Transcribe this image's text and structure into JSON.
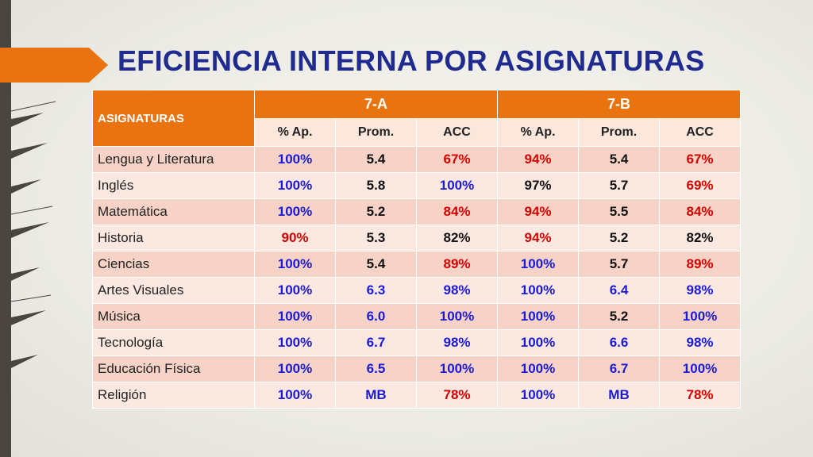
{
  "slide": {
    "title": "EFICIENCIA INTERNA POR ASIGNATURAS",
    "accent_color": "#e8730f",
    "title_color": "#1f2b8f"
  },
  "table": {
    "subject_header": "ASIGNATURAS",
    "groups": [
      "7-A",
      "7-B"
    ],
    "subheaders": [
      "% Ap.",
      "Prom.",
      "ACC",
      "% Ap.",
      "Prom.",
      "ACC"
    ],
    "rows": [
      {
        "subject": "Lengua y Literatura",
        "cells": [
          {
            "v": "100%",
            "c": "blue"
          },
          {
            "v": "5.4",
            "c": "black"
          },
          {
            "v": "67%",
            "c": "red"
          },
          {
            "v": "94%",
            "c": "red"
          },
          {
            "v": "5.4",
            "c": "black"
          },
          {
            "v": "67%",
            "c": "red"
          }
        ]
      },
      {
        "subject": "Inglés",
        "cells": [
          {
            "v": "100%",
            "c": "blue"
          },
          {
            "v": "5.8",
            "c": "black"
          },
          {
            "v": "100%",
            "c": "blue"
          },
          {
            "v": "97%",
            "c": "black"
          },
          {
            "v": "5.7",
            "c": "black"
          },
          {
            "v": "69%",
            "c": "red"
          }
        ]
      },
      {
        "subject": "Matemática",
        "cells": [
          {
            "v": "100%",
            "c": "blue"
          },
          {
            "v": "5.2",
            "c": "black"
          },
          {
            "v": "84%",
            "c": "red"
          },
          {
            "v": "94%",
            "c": "red"
          },
          {
            "v": "5.5",
            "c": "black"
          },
          {
            "v": "84%",
            "c": "red"
          }
        ]
      },
      {
        "subject": "Historia",
        "cells": [
          {
            "v": "90%",
            "c": "red"
          },
          {
            "v": "5.3",
            "c": "black"
          },
          {
            "v": "82%",
            "c": "black"
          },
          {
            "v": "94%",
            "c": "red"
          },
          {
            "v": "5.2",
            "c": "black"
          },
          {
            "v": "82%",
            "c": "black"
          }
        ]
      },
      {
        "subject": "Ciencias",
        "cells": [
          {
            "v": "100%",
            "c": "blue"
          },
          {
            "v": "5.4",
            "c": "black"
          },
          {
            "v": "89%",
            "c": "red"
          },
          {
            "v": "100%",
            "c": "blue"
          },
          {
            "v": "5.7",
            "c": "black"
          },
          {
            "v": "89%",
            "c": "red"
          }
        ]
      },
      {
        "subject": "Artes Visuales",
        "cells": [
          {
            "v": "100%",
            "c": "blue"
          },
          {
            "v": "6.3",
            "c": "blue"
          },
          {
            "v": "98%",
            "c": "blue"
          },
          {
            "v": "100%",
            "c": "blue"
          },
          {
            "v": "6.4",
            "c": "blue"
          },
          {
            "v": "98%",
            "c": "blue"
          }
        ]
      },
      {
        "subject": "Música",
        "cells": [
          {
            "v": "100%",
            "c": "blue"
          },
          {
            "v": "6.0",
            "c": "blue"
          },
          {
            "v": "100%",
            "c": "blue"
          },
          {
            "v": "100%",
            "c": "blue"
          },
          {
            "v": "5.2",
            "c": "black"
          },
          {
            "v": "100%",
            "c": "blue"
          }
        ]
      },
      {
        "subject": "Tecnología",
        "cells": [
          {
            "v": "100%",
            "c": "blue"
          },
          {
            "v": "6.7",
            "c": "blue"
          },
          {
            "v": "98%",
            "c": "blue"
          },
          {
            "v": "100%",
            "c": "blue"
          },
          {
            "v": "6.6",
            "c": "blue"
          },
          {
            "v": "98%",
            "c": "blue"
          }
        ]
      },
      {
        "subject": "Educación Física",
        "cells": [
          {
            "v": "100%",
            "c": "blue"
          },
          {
            "v": "6.5",
            "c": "blue"
          },
          {
            "v": "100%",
            "c": "blue"
          },
          {
            "v": "100%",
            "c": "blue"
          },
          {
            "v": "6.7",
            "c": "blue"
          },
          {
            "v": "100%",
            "c": "blue"
          }
        ]
      },
      {
        "subject": "Religión",
        "cells": [
          {
            "v": "100%",
            "c": "blue"
          },
          {
            "v": "MB",
            "c": "blue"
          },
          {
            "v": "78%",
            "c": "red"
          },
          {
            "v": "100%",
            "c": "blue"
          },
          {
            "v": "MB",
            "c": "blue"
          },
          {
            "v": "78%",
            "c": "red"
          }
        ]
      }
    ]
  }
}
